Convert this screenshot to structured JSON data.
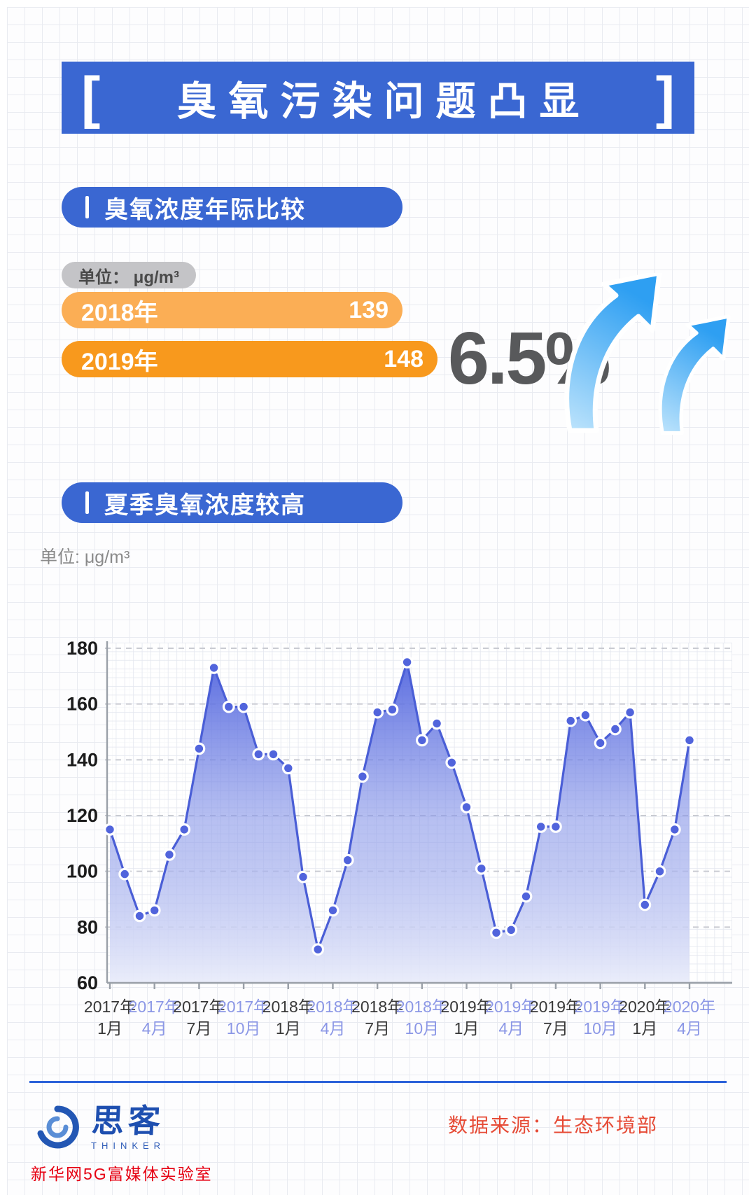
{
  "colors": {
    "accent_blue": "#3a67d2",
    "orange_light": "#fbae55",
    "orange_dark": "#f8991d",
    "line_blue": "#4a5ed6",
    "arrow_blue": "#2e9ff2",
    "tick_main": "#383838",
    "tick_alt": "#8b97e6",
    "footer_red": "#e60012",
    "source_red": "#e64a35"
  },
  "header": {
    "bracket_left": "[",
    "title": "臭氧污染问题凸显",
    "bracket_right": "]"
  },
  "section1": {
    "title": "臭氧浓度年际比较",
    "unit_label": "单位： μg/m³",
    "bars": [
      {
        "label": "2018年",
        "value": 139
      },
      {
        "label": "2019年",
        "value": 148
      }
    ],
    "change_pct": "6.5%"
  },
  "section2": {
    "title": "夏季臭氧浓度较高",
    "unit_label": "单位: μg/m³"
  },
  "chart_data": {
    "type": "area",
    "title": "夏季臭氧浓度较高",
    "ylabel": "单位: μg/m³",
    "ylim": [
      60,
      180
    ],
    "yticks": [
      180,
      160,
      140,
      120,
      100,
      80,
      60
    ],
    "grid": "dashed horizontal",
    "x_start": "2017年1月",
    "x_end": "2020年4月",
    "x_step": "1 month",
    "tick_labels": [
      {
        "year": "2017年",
        "month": "1月"
      },
      {
        "year": "2017年",
        "month": "4月"
      },
      {
        "year": "2017年",
        "month": "7月"
      },
      {
        "year": "2017年",
        "month": "10月"
      },
      {
        "year": "2018年",
        "month": "1月"
      },
      {
        "year": "2018年",
        "month": "4月"
      },
      {
        "year": "2018年",
        "month": "7月"
      },
      {
        "year": "2018年",
        "month": "10月"
      },
      {
        "year": "2019年",
        "month": "1月"
      },
      {
        "year": "2019年",
        "month": "4月"
      },
      {
        "year": "2019年",
        "month": "7月"
      },
      {
        "year": "2019年",
        "month": "10月"
      },
      {
        "year": "2020年",
        "month": "1月"
      },
      {
        "year": "2020年",
        "month": "4月"
      }
    ],
    "values": [
      115,
      99,
      84,
      86,
      106,
      115,
      144,
      173,
      159,
      159,
      142,
      142,
      137,
      98,
      72,
      86,
      104,
      134,
      157,
      158,
      175,
      147,
      153,
      139,
      123,
      101,
      78,
      79,
      91,
      116,
      116,
      154,
      156,
      146,
      151,
      157,
      88,
      100,
      115,
      147
    ]
  },
  "footer": {
    "logo_cn": "思客",
    "logo_en": "THINKER",
    "lab": "新华网5G富媒体实验室",
    "source": "数据来源：生态环境部"
  }
}
